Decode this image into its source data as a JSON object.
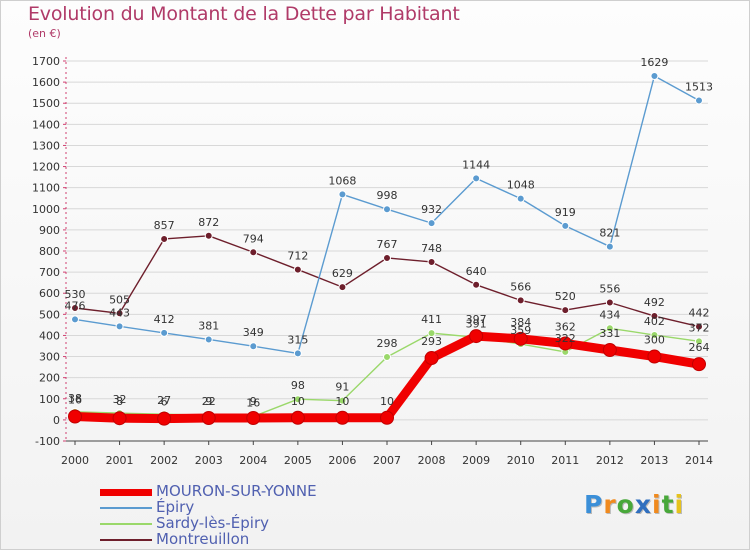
{
  "chart_data": {
    "type": "line",
    "title": "Evolution du Montant de la Dette par Habitant",
    "subtitle": "(en €)",
    "xlabel": "",
    "ylabel": "",
    "x": [
      "2000",
      "2001",
      "2002",
      "2003",
      "2004",
      "2005",
      "2006",
      "2007",
      "2008",
      "2009",
      "2010",
      "2011",
      "2012",
      "2013",
      "2014"
    ],
    "ylim": [
      -100,
      1700
    ],
    "yticks": [
      "-100",
      "0",
      "100",
      "200",
      "300",
      "400",
      "500",
      "600",
      "700",
      "800",
      "900",
      "1000",
      "1100",
      "1200",
      "1300",
      "1400",
      "1500",
      "1600",
      "1700"
    ],
    "grid": "horizontal",
    "legend_position": "bottom-left",
    "series": [
      {
        "name": "Montreuillon",
        "color": "#6e1f2c",
        "values": [
          530,
          505,
          857,
          872,
          794,
          712,
          629,
          767,
          748,
          640,
          566,
          520,
          556,
          492,
          442
        ],
        "labels": [
          "530",
          "505",
          "857",
          "872",
          "794",
          "712",
          "629",
          "767",
          "748",
          "640",
          "566",
          "520",
          "556",
          "492",
          "442"
        ]
      },
      {
        "name": "Épiry",
        "color": "#5b9bd0",
        "values": [
          476,
          443,
          412,
          381,
          349,
          315,
          1068,
          998,
          932,
          1144,
          1048,
          919,
          821,
          1629,
          1513
        ],
        "labels": [
          "476",
          "443",
          "412",
          "381",
          "349",
          "315",
          "1068",
          "998",
          "932",
          "1144",
          "1048",
          "919",
          "821",
          "1629",
          "1513"
        ]
      },
      {
        "name": "Sardy-lès-Épiry",
        "color": "#9ad86a",
        "values": [
          38,
          32,
          27,
          22,
          16,
          98,
          91,
          298,
          411,
          391,
          359,
          322,
          434,
          402,
          372
        ],
        "labels": [
          "38",
          "32",
          "27",
          "22",
          "16",
          "98",
          "91",
          "298",
          "411",
          "391",
          "359",
          "322",
          "434",
          "402",
          "372"
        ]
      },
      {
        "name": "MOURON-SUR-YONNE",
        "color": "#f00000",
        "values": [
          16,
          8,
          6,
          9,
          9,
          10,
          10,
          10,
          293,
          397,
          384,
          362,
          331,
          300,
          264
        ],
        "labels": [
          "16",
          "8",
          "6",
          "9",
          "9",
          "10",
          "10",
          "10",
          "293",
          "397",
          "384",
          "362",
          "331",
          "300",
          "264"
        ]
      }
    ]
  },
  "legend": {
    "items": [
      {
        "name": "MOURON-SUR-YONNE",
        "color": "#f00000",
        "bold": true
      },
      {
        "name": "Épiry",
        "color": "#5b9bd0",
        "bold": false
      },
      {
        "name": "Sardy-lès-Épiry",
        "color": "#9ad86a",
        "bold": false
      },
      {
        "name": "Montreuillon",
        "color": "#6e1f2c",
        "bold": false
      }
    ]
  },
  "logo": {
    "letters": [
      "P",
      "r",
      "o",
      "x",
      "i",
      "t",
      "i"
    ],
    "colors": [
      "#3b8fd8",
      "#f08a1e",
      "#48a83a",
      "#2f6fbf",
      "#f08a1e",
      "#48a83a",
      "#e6c21c"
    ],
    "icon": "proxiti-logo"
  }
}
